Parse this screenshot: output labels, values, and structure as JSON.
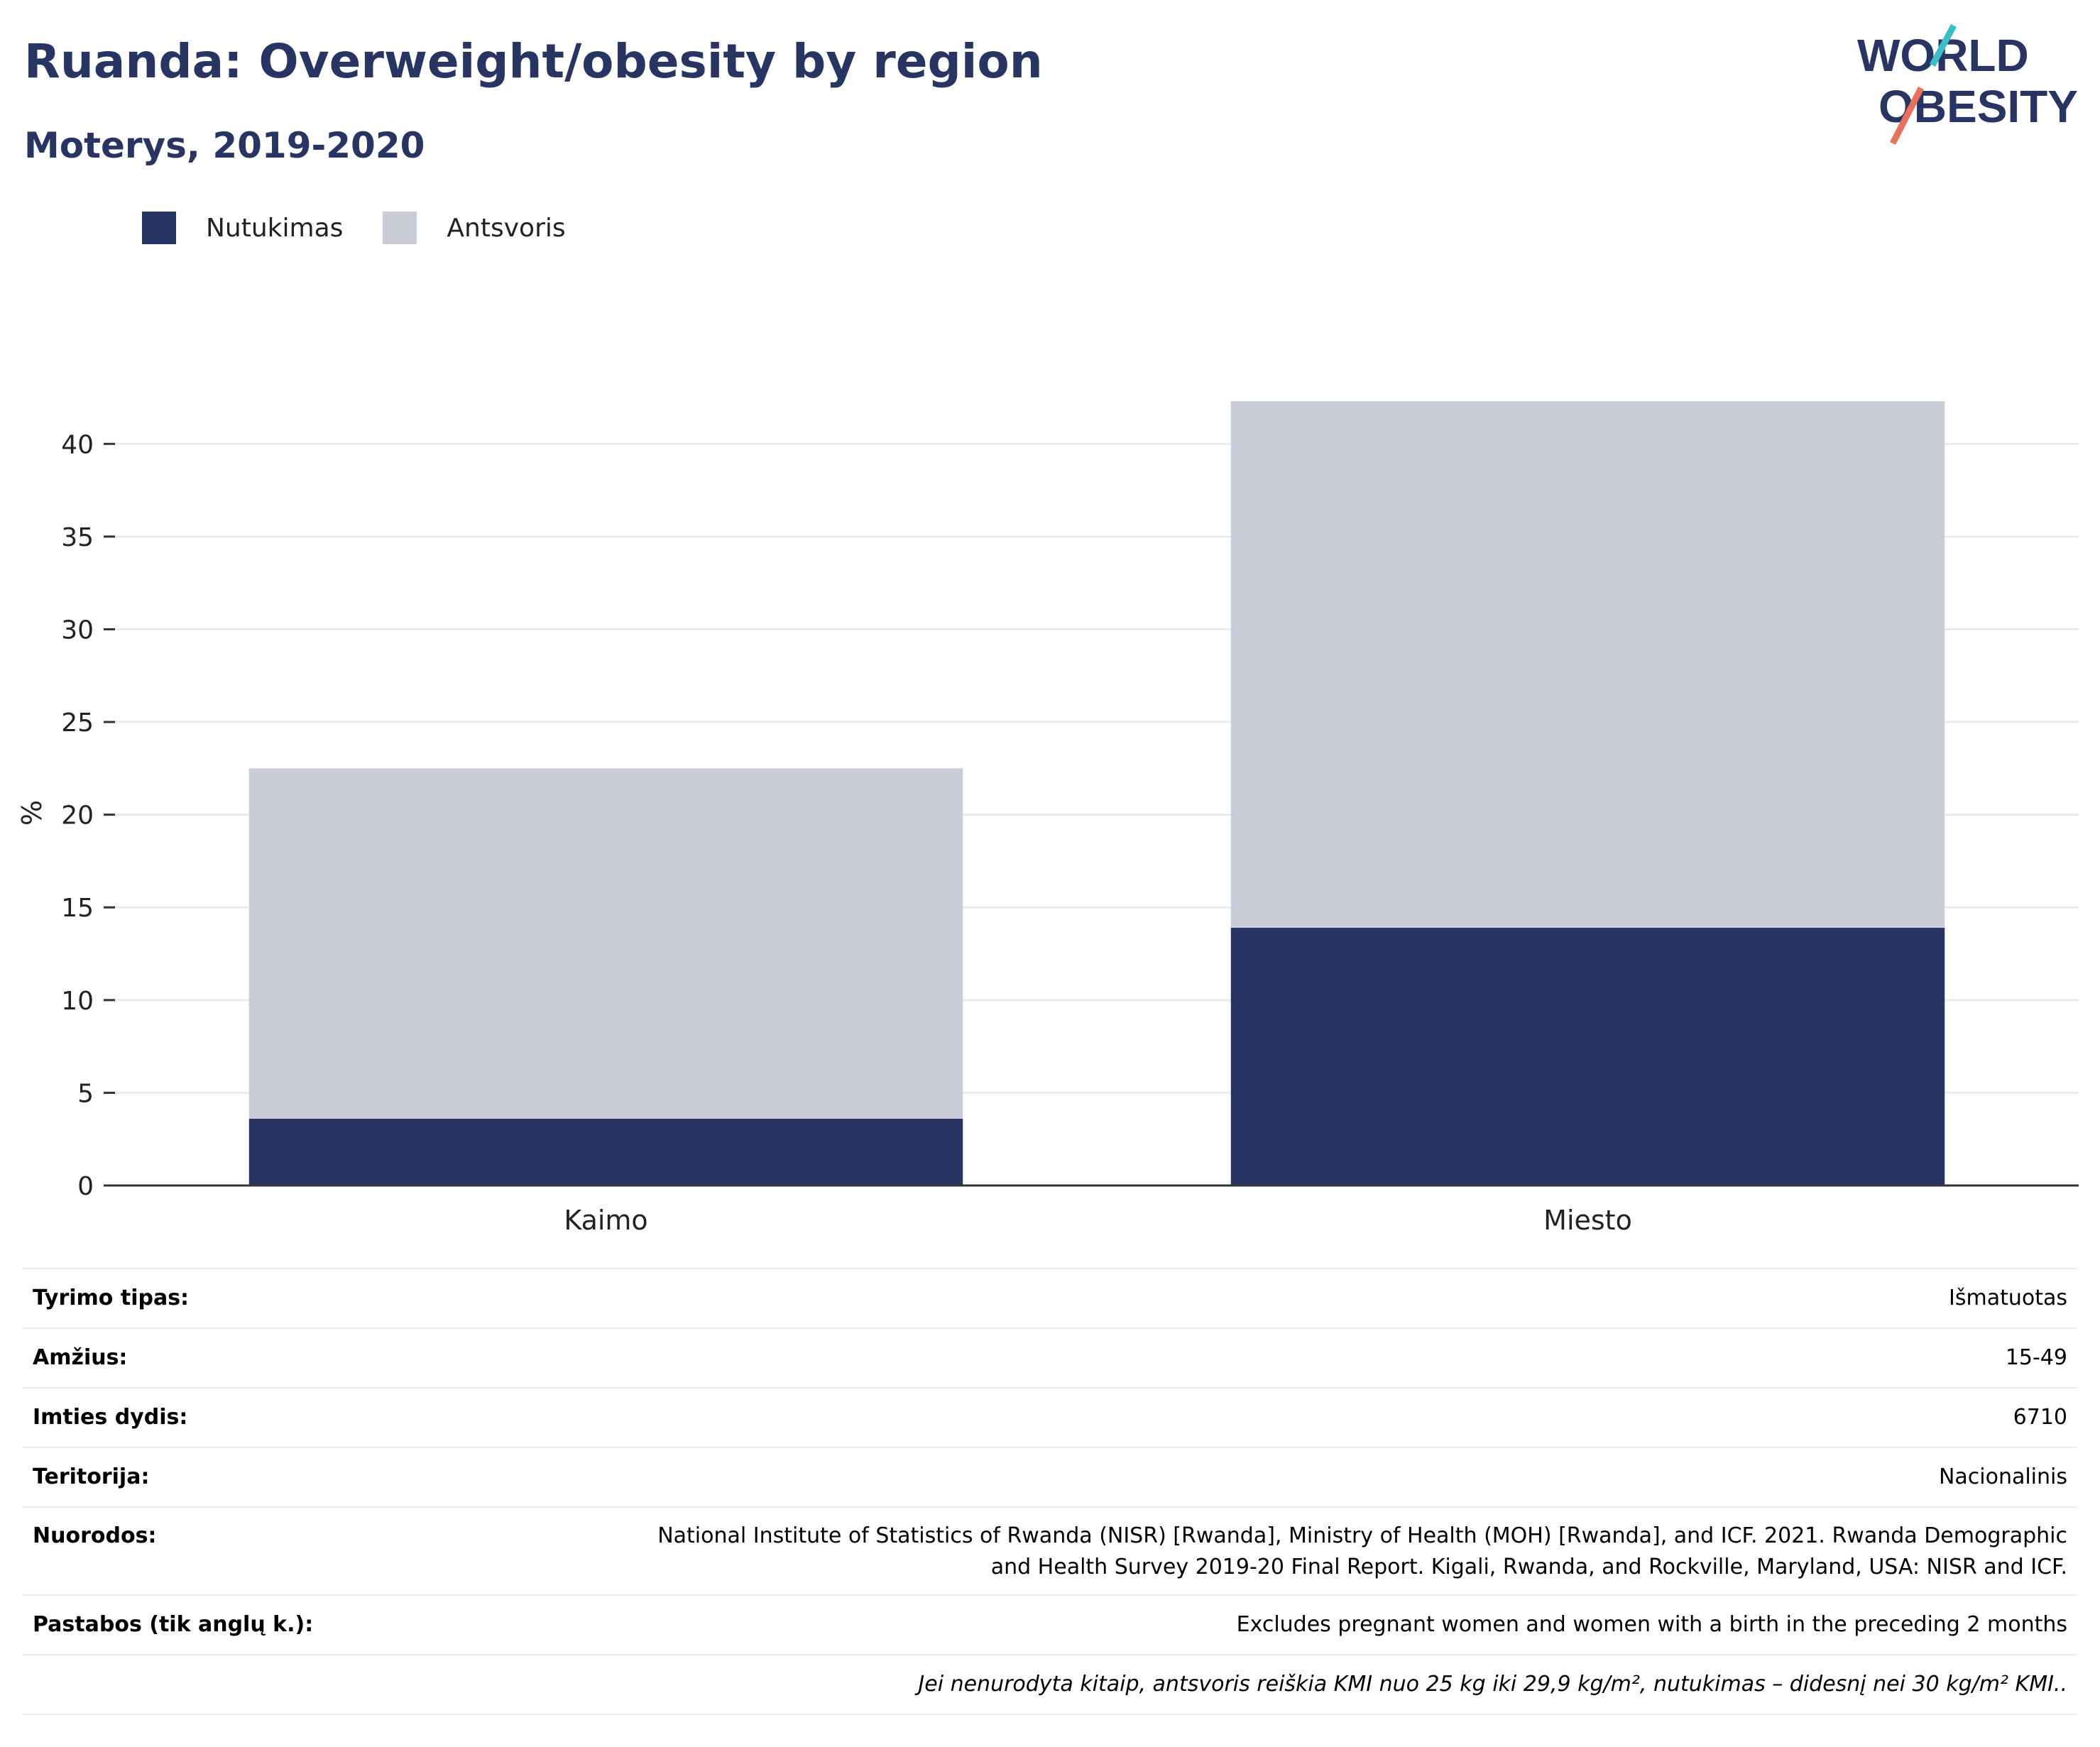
{
  "header": {
    "title": "Ruanda: Overweight/obesity by region",
    "subtitle": "Moterys, 2019-2020"
  },
  "logo": {
    "line1": "WORLD",
    "line2": "OBESITY"
  },
  "colors": {
    "obesity": "#283562",
    "overweight": "#caccd8",
    "title": "#283562",
    "accent_teal": "#3bbfc4",
    "accent_coral": "#e8705f"
  },
  "chart_data": {
    "type": "bar",
    "stacked": true,
    "categories": [
      "Kaimo",
      "Miesto"
    ],
    "series": [
      {
        "name": "Nutukimas",
        "values": [
          3.6,
          13.9
        ]
      },
      {
        "name": "Antsvoris",
        "values": [
          18.9,
          28.4
        ]
      }
    ],
    "ylabel": "%",
    "ylim": [
      0,
      42.5
    ],
    "yticks": [
      0,
      5,
      10,
      15,
      20,
      25,
      30,
      35,
      40
    ],
    "grid": true,
    "legend": "top-left"
  },
  "meta": {
    "rows": [
      {
        "label": "Tyrimo tipas:",
        "value": "Išmatuotas"
      },
      {
        "label": "Amžius:",
        "value": "15-49"
      },
      {
        "label": "Imties dydis:",
        "value": "6710"
      },
      {
        "label": "Teritorija:",
        "value": "Nacionalinis"
      },
      {
        "label": "Nuorodos:",
        "value_line1": "National Institute of Statistics of Rwanda (NISR) [Rwanda], Ministry of Health (MOH) [Rwanda], and ICF. 2021. Rwanda Demographic",
        "value_line2": "and Health Survey 2019-20 Final Report. Kigali, Rwanda, and Rockville, Maryland, USA: NISR and ICF."
      },
      {
        "label": "Pastabos (tik anglų k.):",
        "value": "Excludes pregnant women and women with a birth in the preceding 2 months"
      }
    ],
    "note": "Jei nenurodyta kitaip, antsvoris reiškia KMI nuo 25 kg iki 29,9 kg/m², nutukimas – didesnį nei 30 kg/m² KMI.."
  }
}
